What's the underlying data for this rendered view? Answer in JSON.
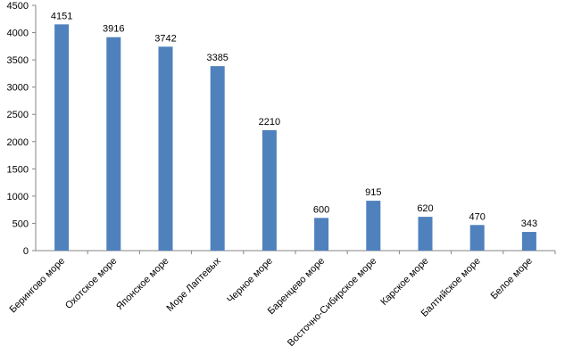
{
  "chart_data": {
    "type": "bar",
    "categories": [
      "Берингово море",
      "Охотское море",
      "Японское море",
      "Море Лаптевых",
      "Черное море",
      "Баренцево море",
      "Восточно-Сибирское море",
      "Карское море",
      "Балтийское море",
      "Белое море"
    ],
    "values": [
      4151,
      3916,
      3742,
      3385,
      2210,
      600,
      915,
      620,
      470,
      343
    ],
    "color": "#4f81bd",
    "ylim": [
      0,
      4500
    ],
    "yticks": [
      0,
      500,
      1000,
      1500,
      2000,
      2500,
      3000,
      3500,
      4000,
      4500
    ],
    "grid": false
  }
}
